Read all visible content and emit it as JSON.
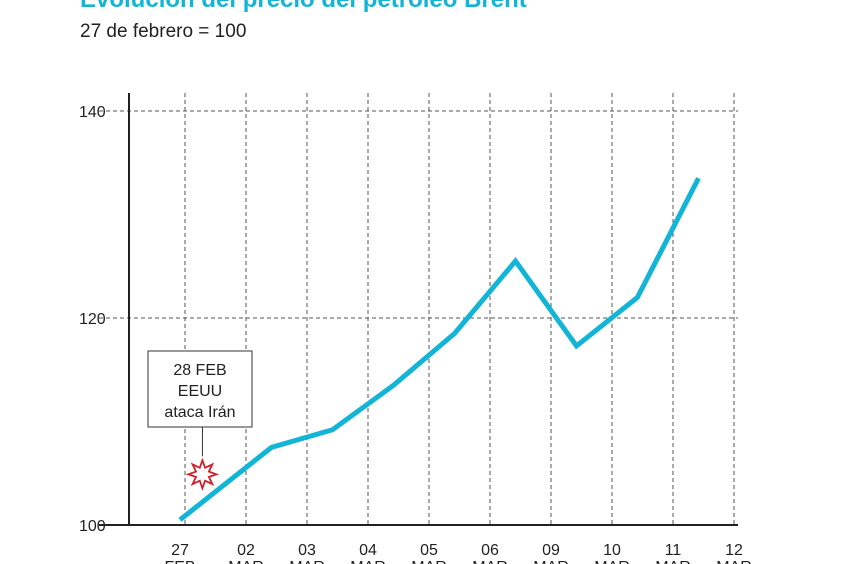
{
  "title": "Evolución del precio del petróleo Brent",
  "subtitle": "27 de febrero = 100",
  "colors": {
    "line": "#12b5d6",
    "marker": "#d0202a",
    "grid": "#333333"
  },
  "chart_data": {
    "type": "line",
    "categories": [
      {
        "day": "27",
        "month": "FEB"
      },
      {
        "day": "02",
        "month": "MAR"
      },
      {
        "day": "03",
        "month": "MAR"
      },
      {
        "day": "04",
        "month": "MAR"
      },
      {
        "day": "05",
        "month": "MAR"
      },
      {
        "day": "06",
        "month": "MAR"
      },
      {
        "day": "09",
        "month": "MAR"
      },
      {
        "day": "10",
        "month": "MAR"
      },
      {
        "day": "11",
        "month": "MAR"
      },
      {
        "day": "12",
        "month": "MAR"
      }
    ],
    "points": [
      {
        "x": 0.0,
        "y": 100.5
      },
      {
        "x": 0.6,
        "y": 103.3
      },
      {
        "x": 1.5,
        "y": 107.5
      },
      {
        "x": 2.5,
        "y": 109.2
      },
      {
        "x": 3.5,
        "y": 113.5
      },
      {
        "x": 4.5,
        "y": 118.5
      },
      {
        "x": 5.5,
        "y": 125.5
      },
      {
        "x": 6.5,
        "y": 117.3
      },
      {
        "x": 7.5,
        "y": 122.0
      },
      {
        "x": 8.5,
        "y": 133.5
      }
    ],
    "ylim": [
      100,
      140
    ],
    "yticks": [
      100,
      120,
      140
    ],
    "grid": true,
    "annotation": {
      "lines": [
        "28 FEB",
        "EEUU",
        "ataca Irán"
      ],
      "x": 0.45,
      "y": 105
    }
  }
}
